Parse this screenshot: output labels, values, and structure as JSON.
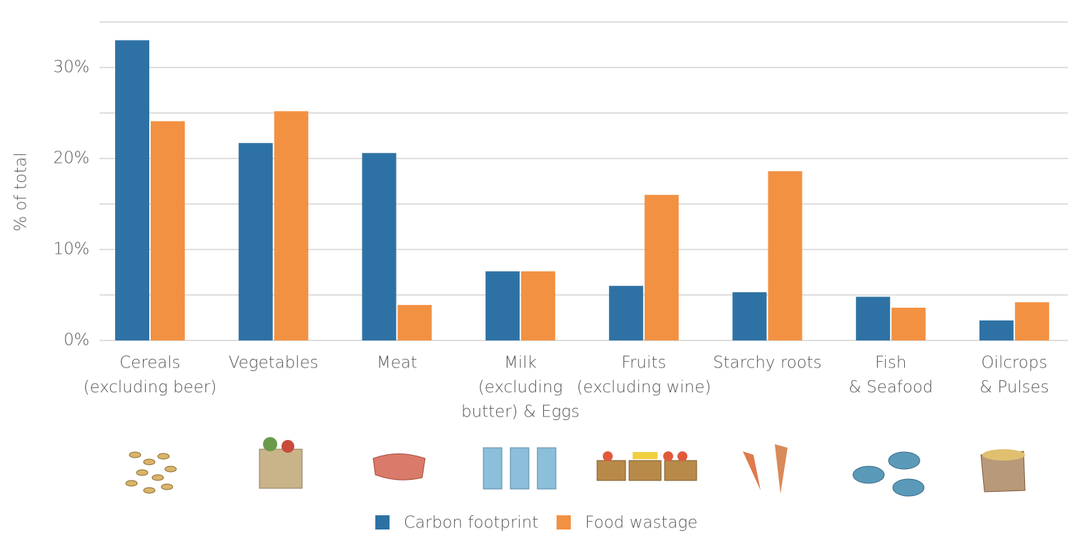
{
  "chart_data": {
    "type": "bar",
    "y_label": "% of total",
    "categories": [
      [
        "Cereals",
        "(excluding beer)"
      ],
      [
        "Vegetables"
      ],
      [
        "Meat"
      ],
      [
        "Milk",
        "(excluding",
        "butter) & Eggs"
      ],
      [
        "Fruits",
        "(excluding wine)"
      ],
      [
        "Starchy roots"
      ],
      [
        "Fish",
        "& Seafood"
      ],
      [
        "Oilcrops",
        "& Pulses"
      ]
    ],
    "series": [
      {
        "name": "Carbon footprint",
        "color": "#2e72a5",
        "values": [
          33.0,
          21.7,
          20.6,
          7.6,
          6.0,
          5.3,
          4.8,
          2.2
        ]
      },
      {
        "name": "Food wastage",
        "color": "#f39143",
        "values": [
          24.1,
          25.2,
          3.9,
          7.6,
          16.0,
          18.6,
          3.6,
          4.2
        ]
      }
    ],
    "ylim": [
      0,
      35
    ],
    "yticks": [
      {
        "value": 0,
        "label": "0%"
      },
      {
        "value": 10,
        "label": "10%"
      },
      {
        "value": 20,
        "label": "20%"
      },
      {
        "value": 30,
        "label": "30%"
      }
    ],
    "minor_yticks": [
      5,
      15,
      25,
      35
    ],
    "grid": true,
    "legend": "bottom"
  }
}
